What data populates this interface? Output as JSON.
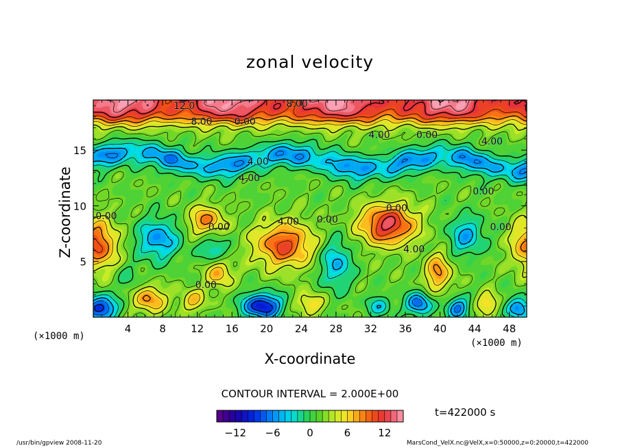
{
  "title": "zonal velocity",
  "chart_data": {
    "type": "heatmap",
    "title": "zonal velocity",
    "xlabel": "X-coordinate",
    "ylabel": "Z-coordinate",
    "x_unit": "(×1000 m)",
    "z_unit": "(×1000 m)",
    "xlim": [
      0,
      50
    ],
    "ylim": [
      0,
      19.5
    ],
    "x_ticks": [
      4,
      8,
      12,
      16,
      20,
      24,
      28,
      32,
      36,
      40,
      44,
      48
    ],
    "y_ticks": [
      5,
      10,
      15
    ],
    "contour_interval_text": "CONTOUR INTERVAL = 2.000E+00",
    "time_text": "t=422000 s",
    "colorbar": {
      "min": -15,
      "max": 15,
      "ticks": [
        -12,
        -6,
        0,
        6,
        12
      ],
      "tick_labels": [
        "−12",
        "−6",
        "0",
        "6",
        "12"
      ]
    },
    "contour_labels": [
      {
        "text": "12.0",
        "x": 10.5,
        "z": 18.7
      },
      {
        "text": "8.00",
        "x": 23.5,
        "z": 18.9
      },
      {
        "text": "8.00",
        "x": 12.5,
        "z": 17.3
      },
      {
        "text": "0.00",
        "x": 17.5,
        "z": 17.3
      },
      {
        "text": "4.00",
        "x": 33.0,
        "z": 16.1
      },
      {
        "text": "0.00",
        "x": 38.5,
        "z": 16.1
      },
      {
        "text": "4.00",
        "x": 46.0,
        "z": 15.5
      },
      {
        "text": "4.00",
        "x": 19.0,
        "z": 13.7
      },
      {
        "text": "4.00",
        "x": 18.0,
        "z": 12.2
      },
      {
        "text": "0.00",
        "x": 45.0,
        "z": 11.0
      },
      {
        "text": "0.00",
        "x": 1.5,
        "z": 8.8
      },
      {
        "text": "0.00",
        "x": 14.5,
        "z": 7.8
      },
      {
        "text": "4.00",
        "x": 22.5,
        "z": 8.3
      },
      {
        "text": "0.00",
        "x": 27.0,
        "z": 8.5
      },
      {
        "text": "0.00",
        "x": 35.0,
        "z": 9.5
      },
      {
        "text": "0.00",
        "x": 47.0,
        "z": 7.8
      },
      {
        "text": "4.00",
        "x": 37.0,
        "z": 5.8
      },
      {
        "text": "0.00",
        "x": 13.0,
        "z": 2.6
      }
    ],
    "features": [
      {
        "kind": "max",
        "x": 34,
        "z": 8.3,
        "value": 12
      },
      {
        "kind": "max",
        "x": 22,
        "z": 6.5,
        "value": 10
      },
      {
        "kind": "max",
        "x": 13,
        "z": 8.7,
        "value": 8
      },
      {
        "kind": "max",
        "x": 0.5,
        "z": 6.5,
        "value": 10
      },
      {
        "kind": "max",
        "x": 39.8,
        "z": 4.0,
        "value": 8
      },
      {
        "kind": "max",
        "x": 50,
        "z": 6.5,
        "value": 8
      },
      {
        "kind": "max",
        "x": 14.5,
        "z": 4.0,
        "value": 7
      },
      {
        "kind": "max",
        "x": 6.5,
        "z": 1.6,
        "value": 8
      },
      {
        "kind": "min",
        "x": 7.5,
        "z": 7.0,
        "value": -6
      },
      {
        "kind": "min",
        "x": 28.0,
        "z": 4.8,
        "value": -5
      },
      {
        "kind": "min",
        "x": 43.0,
        "z": 7.3,
        "value": -5
      },
      {
        "kind": "min",
        "x": 14.0,
        "z": 6.0,
        "value": -4
      },
      {
        "kind": "min",
        "x": 19.5,
        "z": 1.0,
        "value": -10
      },
      {
        "kind": "min",
        "x": 37.5,
        "z": 1.2,
        "value": -7
      },
      {
        "kind": "min",
        "x": 0.8,
        "z": 0.8,
        "value": -9
      },
      {
        "kind": "min",
        "x": 42.0,
        "z": 0.8,
        "value": -7
      },
      {
        "kind": "min",
        "x": 49.0,
        "z": 0.8,
        "value": -6
      }
    ]
  },
  "footer_left": "/usr/bin/gpview   2008-11-20",
  "footer_right": "MarsCond_VelX.nc@VelX,x=0:50000,z=0:20000,t=422000"
}
